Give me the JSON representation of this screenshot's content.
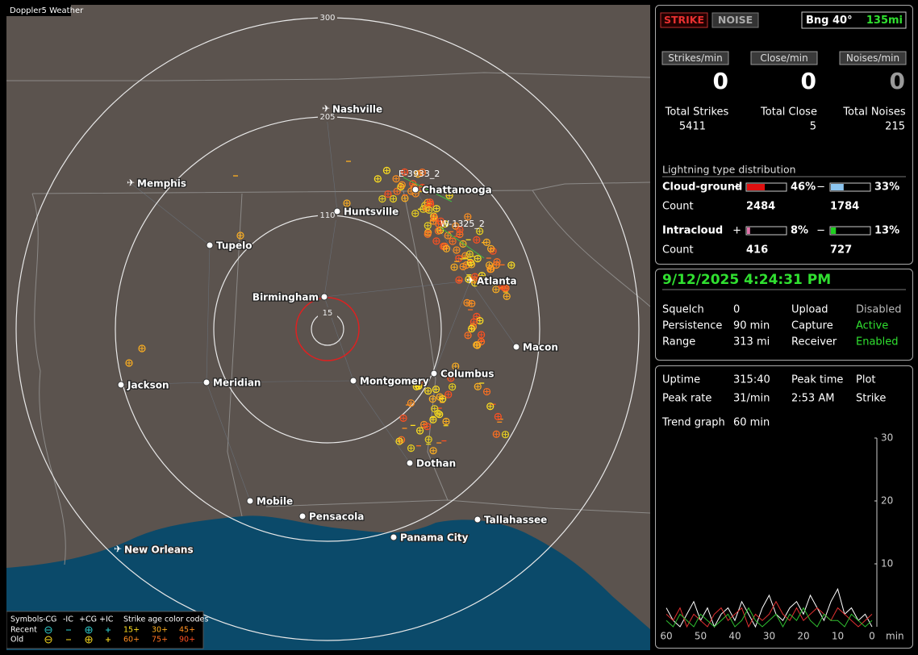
{
  "map": {
    "title": "Doppler5 Weather",
    "ring_labels": [
      "300",
      "205",
      "110",
      "15"
    ],
    "cities": [
      "Nashville",
      "Memphis",
      "Chattanooga",
      "Huntsville",
      "Tupelo",
      "Birmingham",
      "Atlanta",
      "Macon",
      "Jackson",
      "Meridian",
      "Montgomery",
      "Columbus",
      "Dothan",
      "Mobile",
      "Pensacola",
      "Tallahassee",
      "Panama City",
      "New Orleans"
    ],
    "storms": [
      "E-3933_2",
      "W-1325_2"
    ],
    "legend": {
      "symbols": "Symbols",
      "types": [
        "-CG",
        "-IC",
        "+CG",
        "+IC"
      ],
      "age_title": "Strike age color codes",
      "rows": [
        {
          "label": "Recent",
          "ages": [
            "15+",
            "30+",
            "45+"
          ]
        },
        {
          "label": "Old",
          "ages": [
            "60+",
            "75+",
            "90+"
          ]
        }
      ]
    }
  },
  "status": {
    "buttons": [
      "STRIKE",
      "NOISE"
    ],
    "bearing": "Bng 40°",
    "distance": "135mi",
    "rates": [
      {
        "label": "Strikes/min",
        "value": 0
      },
      {
        "label": "Close/min",
        "value": 0
      },
      {
        "label": "Noises/min",
        "value": 0
      }
    ],
    "totals": [
      {
        "label": "Total Strikes",
        "value": 5411
      },
      {
        "label": "Total Close",
        "value": 5
      },
      {
        "label": "Total Noises",
        "value": 215
      }
    ],
    "distribution": {
      "title": "Lightning type distribution",
      "rows": [
        {
          "label": "Cloud-ground",
          "count_label": "Count",
          "parts": [
            {
              "sign": "+",
              "value": 46,
              "label": "46%",
              "count": 2484,
              "color": "#e01010"
            },
            {
              "sign": "−",
              "value": 33,
              "label": "33%",
              "count": 1784,
              "color": "#8cc4ee"
            }
          ]
        },
        {
          "label": "Intracloud",
          "count_label": "Count",
          "parts": [
            {
              "sign": "+",
              "value": 8,
              "label": "8%",
              "count": 416,
              "color": "#e070a8"
            },
            {
              "sign": "−",
              "value": 13,
              "label": "13%",
              "count": 727,
              "color": "#20d020"
            }
          ]
        }
      ]
    }
  },
  "info": {
    "datetime": "9/12/2025 4:24:31 PM",
    "rows": [
      [
        "Squelch",
        0,
        "Upload",
        "Disabled"
      ],
      [
        "Persistence",
        "90 min",
        "Capture",
        "Active"
      ],
      [
        "Range",
        "313 mi",
        "Receiver",
        "Enabled"
      ]
    ]
  },
  "trend": {
    "rows": [
      [
        "Uptime",
        "315:40",
        "Peak time",
        "Plot"
      ],
      [
        "Peak rate",
        "31/min",
        "2:53 AM",
        "Strike"
      ]
    ],
    "graph_label": "Trend graph",
    "graph_span": "60 min"
  },
  "chart_data": {
    "type": "line",
    "x": [
      60,
      58,
      56,
      54,
      52,
      50,
      48,
      46,
      44,
      42,
      40,
      38,
      36,
      34,
      32,
      30,
      28,
      26,
      24,
      22,
      20,
      18,
      16,
      14,
      12,
      10,
      8,
      6,
      4,
      2,
      0
    ],
    "xlim": [
      60,
      0
    ],
    "xticks": [
      60,
      50,
      40,
      30,
      20,
      10,
      0
    ],
    "x_label": "min",
    "ylim": [
      0,
      30
    ],
    "yticks": [
      10,
      20,
      30
    ],
    "series": [
      {
        "color": "#ffffff",
        "values": [
          3,
          1,
          0,
          2,
          4,
          1,
          3,
          0,
          2,
          3,
          1,
          4,
          2,
          0,
          3,
          5,
          2,
          1,
          3,
          4,
          2,
          5,
          3,
          1,
          4,
          6,
          2,
          3,
          1,
          2,
          0
        ]
      },
      {
        "color": "#e03030",
        "values": [
          2,
          1,
          3,
          0,
          2,
          1,
          0,
          2,
          3,
          1,
          2,
          3,
          0,
          2,
          1,
          2,
          4,
          2,
          1,
          3,
          1,
          2,
          3,
          2,
          1,
          3,
          2,
          1,
          0,
          1,
          2
        ]
      },
      {
        "color": "#30c030",
        "values": [
          1,
          0,
          2,
          1,
          0,
          2,
          1,
          0,
          1,
          2,
          0,
          1,
          3,
          1,
          0,
          1,
          2,
          0,
          2,
          1,
          3,
          1,
          0,
          2,
          1,
          1,
          0,
          2,
          1,
          0,
          1
        ]
      }
    ]
  }
}
